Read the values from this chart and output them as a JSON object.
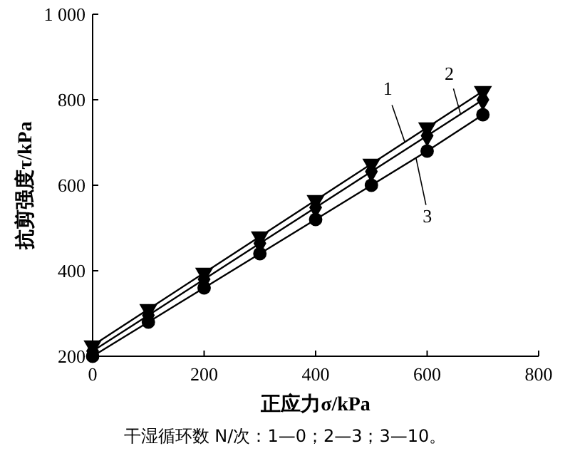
{
  "chart_data": {
    "type": "line",
    "xlabel": "正应力σ/kPa",
    "ylabel": "抗剪强度τ/kPa",
    "x": [
      0,
      100,
      200,
      300,
      400,
      500,
      600,
      700
    ],
    "series": [
      {
        "color": "#000000",
        "marker": "triangle",
        "values": [
          225,
          310,
          395,
          480,
          565,
          650,
          735,
          820
        ]
      },
      {
        "color": "#000000",
        "marker": "diamond",
        "values": [
          212,
          296,
          380,
          464,
          548,
          632,
          716,
          800
        ]
      },
      {
        "color": "#000000",
        "marker": "circle",
        "values": [
          200,
          280,
          360,
          440,
          520,
          600,
          680,
          765
        ]
      }
    ],
    "xlim": [
      0,
      800
    ],
    "xticks": [
      0,
      200,
      400,
      600,
      800
    ],
    "ylim": [
      200,
      1000
    ],
    "yticks": [
      200,
      400,
      600,
      800,
      {
        "value": 1000,
        "label": "1 000"
      }
    ],
    "grid": false,
    "line_style": "solid",
    "annotations": [
      {
        "text": "1",
        "x": 560,
        "y": 701
      },
      {
        "text": "2",
        "x": 660,
        "y": 766
      },
      {
        "text": "3",
        "x": 580,
        "y": 664
      },
      "干湿循环数 N/次：1—0；2—3；3—10。"
    ]
  }
}
